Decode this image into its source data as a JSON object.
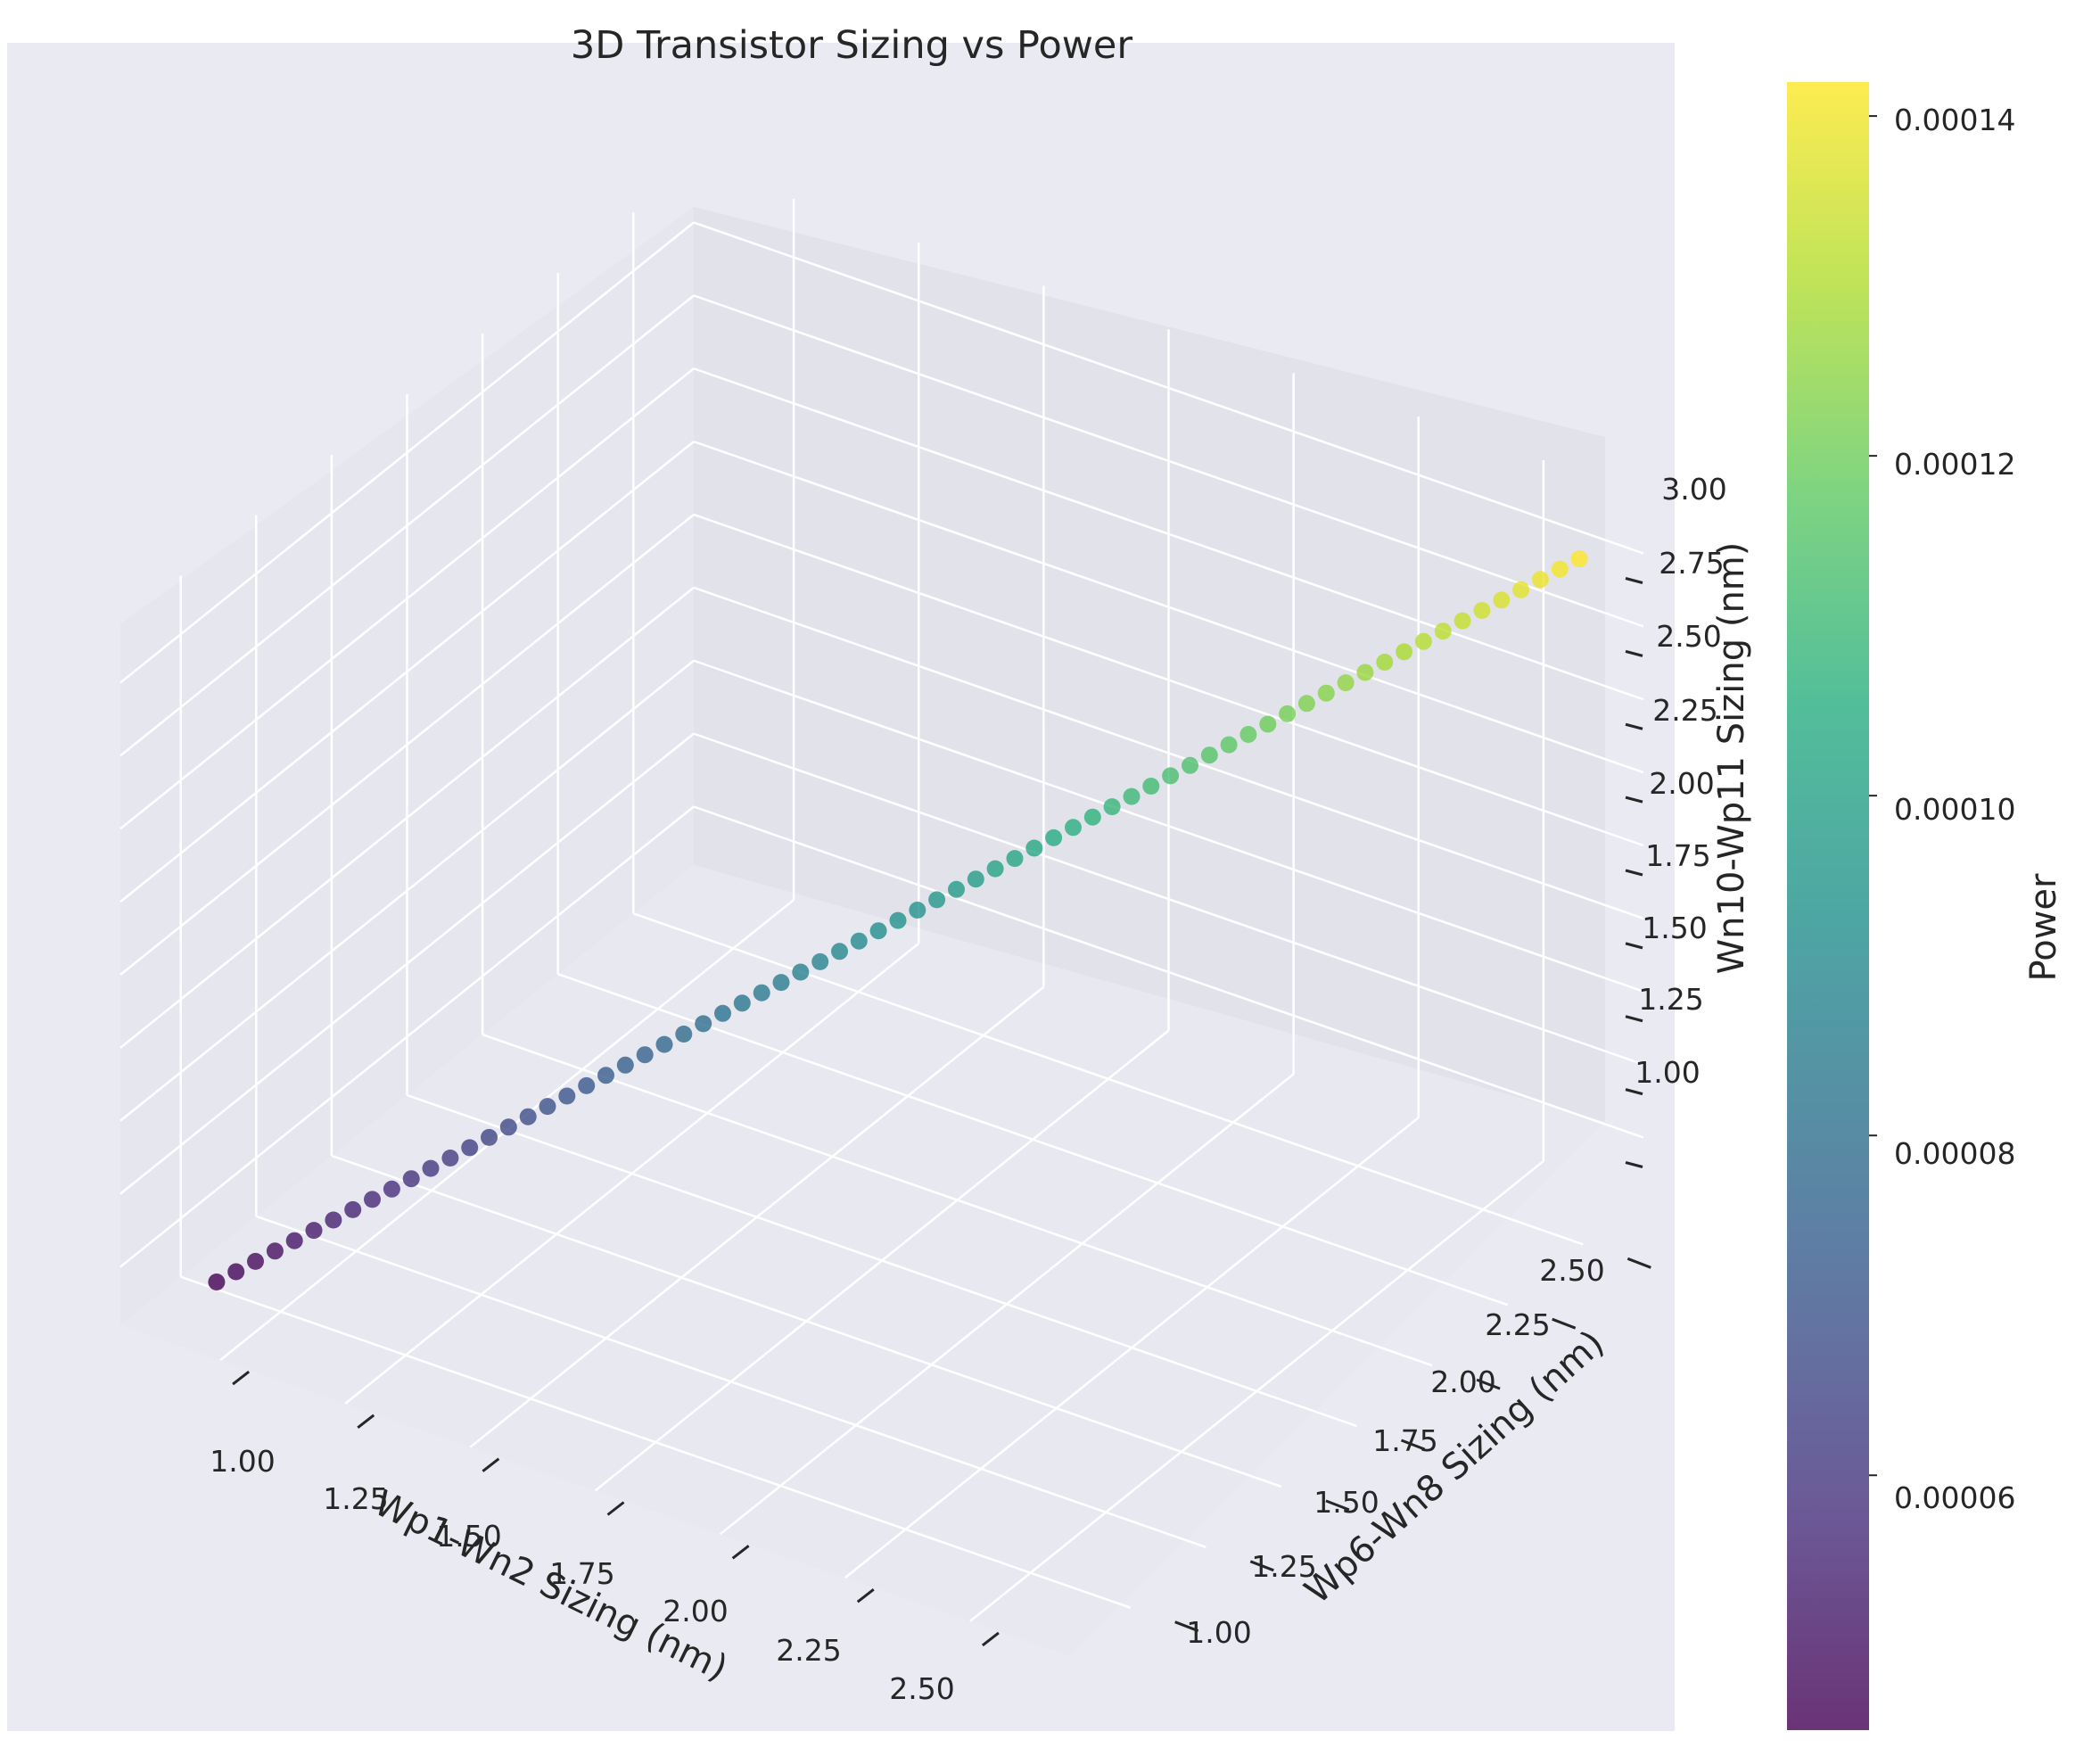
{
  "chart_data": {
    "type": "scatter",
    "projection": "3d",
    "title": "3D Transistor Sizing vs Power",
    "xlabel": "Wp1-Wn2 Sizing (nm)",
    "ylabel": "Wp6-Wn8 Sizing (nm)",
    "zlabel": "Wn10-Wp11 Sizing (nm)",
    "xlim": [
      0.8,
      2.7
    ],
    "ylim": [
      0.8,
      2.7
    ],
    "zlim": [
      0.8,
      3.2
    ],
    "x_ticks": [
      "1.00",
      "1.25",
      "1.50",
      "1.75",
      "2.00",
      "2.25",
      "2.50"
    ],
    "y_ticks": [
      "1.00",
      "1.25",
      "1.50",
      "1.75",
      "2.00",
      "2.25",
      "2.50"
    ],
    "z_ticks": [
      "1.00",
      "1.25",
      "1.50",
      "1.75",
      "2.00",
      "2.25",
      "2.50",
      "2.75",
      "3.00"
    ],
    "grid": true,
    "series": [
      {
        "points": {
          "count": 71,
          "x_start": 0.92,
          "x_end": 2.62,
          "y_start": 0.92,
          "y_end": 2.62,
          "z_start": 0.92,
          "z_end": 3.0,
          "power_start": 4.5e-05,
          "power_end": 0.000142
        }
      }
    ],
    "colorbar": {
      "label": "Power",
      "colormap": "viridis",
      "min": 4.5e-05,
      "max": 0.000142,
      "ticks": [
        "0.00006",
        "0.00008",
        "0.00010",
        "0.00012",
        "0.00014"
      ]
    },
    "colors": {
      "pane": "#eaeaf2",
      "grid": "#ffffff",
      "text": "#262626"
    }
  }
}
